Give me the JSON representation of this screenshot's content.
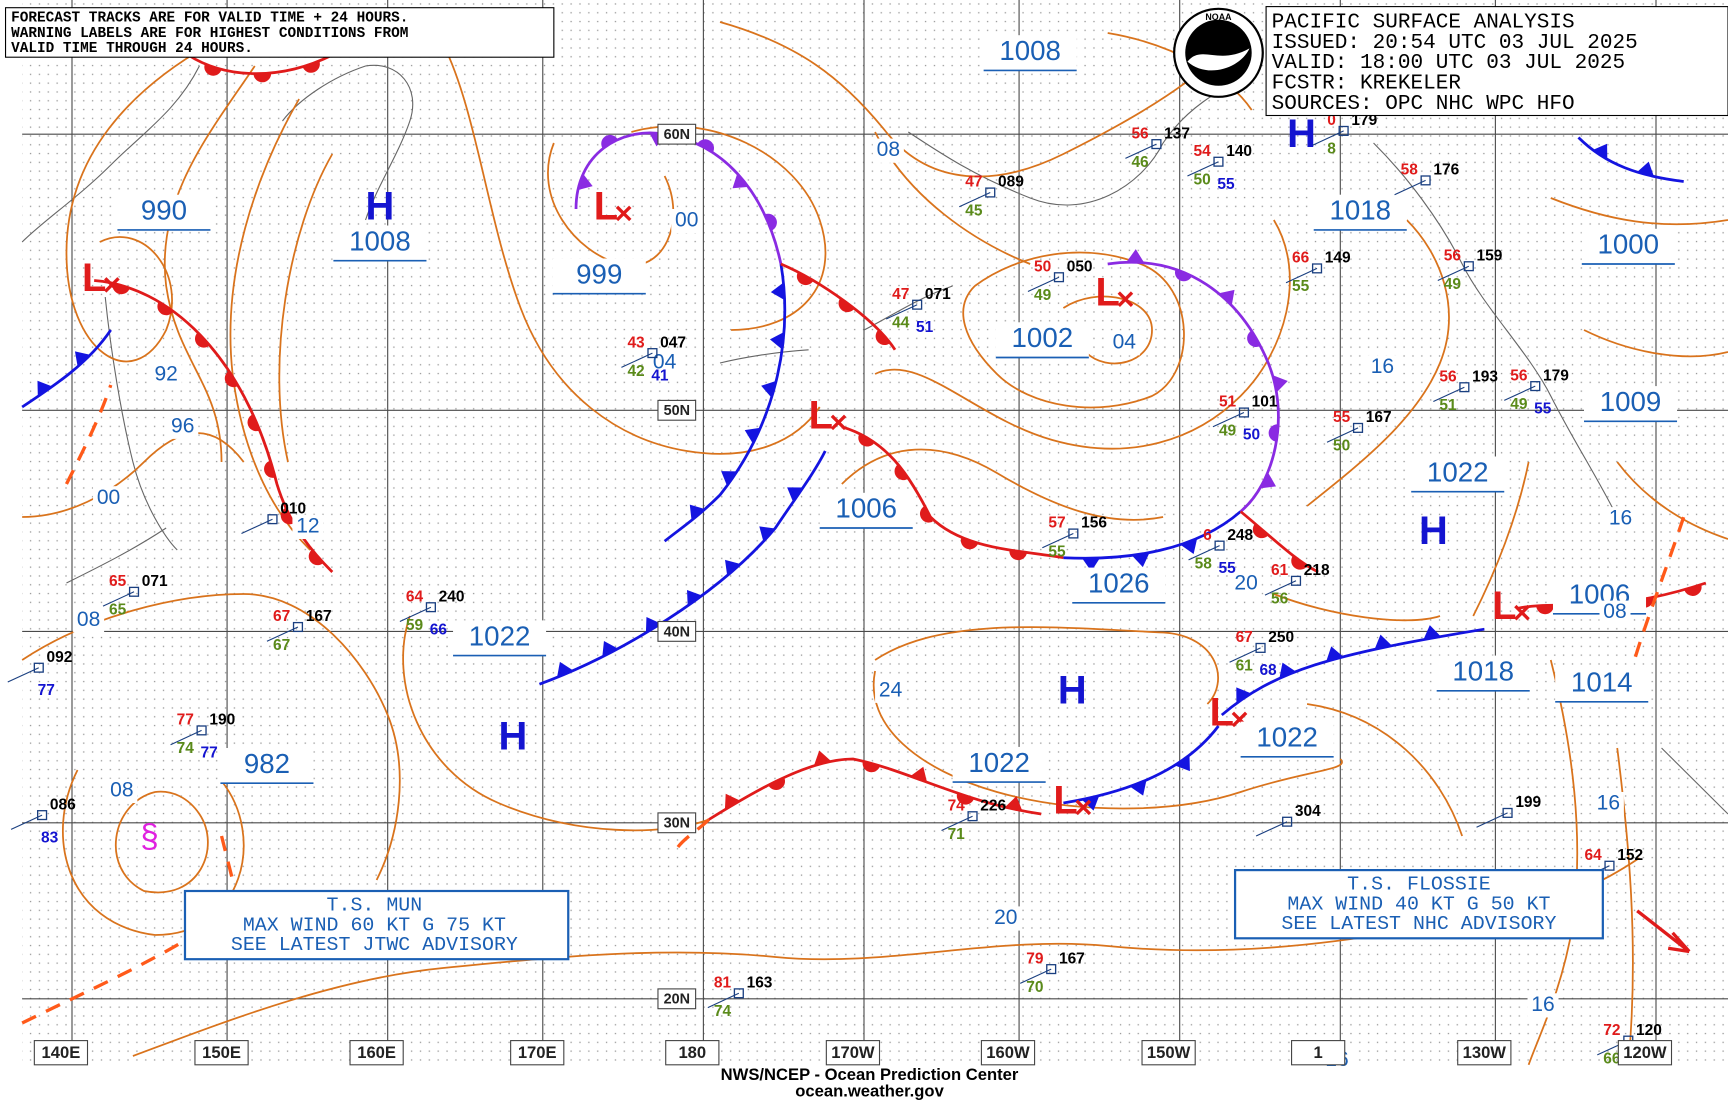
{
  "notice": [
    "FORECAST TRACKS ARE FOR VALID TIME + 24 HOURS.",
    "WARNING LABELS ARE FOR HIGHEST CONDITIONS FROM",
    "VALID TIME THROUGH 24 HOURS."
  ],
  "info": [
    "PACIFIC SURFACE ANALYSIS",
    "ISSUED: 20:54 UTC 03 JUL 2025",
    "VALID:  18:00 UTC 03 JUL 2025",
    "FCSTR:  KREKELER",
    "SOURCES:  OPC NHC WPC HFO"
  ],
  "logo": "NOAA",
  "lon_labels": [
    "140E",
    "150E",
    "160E",
    "170E",
    "180",
    "170W",
    "160W",
    "150W",
    "1",
    "130W",
    "120W"
  ],
  "lat_labels": [
    "60N",
    "50N",
    "40N",
    "30N",
    "20N"
  ],
  "boxed_pressures": [
    "1008",
    "990",
    "1008",
    "999",
    "1002",
    "1018",
    "1000",
    "1009",
    "1022",
    "1006",
    "1026",
    "1022",
    "982",
    "1022",
    "1022",
    "1018",
    "1014",
    "1006"
  ],
  "isobar_labels": [
    "08",
    "00",
    "04",
    "92",
    "96",
    "00",
    "12",
    "08",
    "08",
    "04",
    "16",
    "16",
    "20",
    "24",
    "20",
    "16",
    "16",
    "16",
    "08"
  ],
  "centers": [
    "H",
    "L",
    "L",
    "L",
    "H",
    "L",
    "H",
    "H",
    "H",
    "L",
    "L",
    "L"
  ],
  "stations": [
    {
      "p": "089",
      "t": "47",
      "d": "45"
    },
    {
      "p": "050",
      "t": "50",
      "d": "49"
    },
    {
      "p": "071",
      "t": "47",
      "d": "44",
      "w": "51"
    },
    {
      "p": "047",
      "t": "43",
      "d": "42",
      "w": "41"
    },
    {
      "p": "137",
      "t": "56",
      "d": "46"
    },
    {
      "p": "140",
      "t": "54",
      "d": "50",
      "w": "55"
    },
    {
      "p": "179",
      "t": "0",
      "d": "8"
    },
    {
      "p": "176",
      "t": "58"
    },
    {
      "p": "149",
      "t": "66",
      "d": "55"
    },
    {
      "p": "159",
      "t": "56",
      "d": "49"
    },
    {
      "p": "193",
      "t": "56",
      "d": "51"
    },
    {
      "p": "179",
      "t": "56",
      "d": "49",
      "w": "55"
    },
    {
      "p": "101",
      "t": "51",
      "d": "49",
      "w": "50"
    },
    {
      "p": "167",
      "t": "55",
      "d": "50"
    },
    {
      "p": "156",
      "t": "57",
      "d": "55"
    },
    {
      "p": "248",
      "t": "6",
      "d": "58",
      "w": "55"
    },
    {
      "p": "218",
      "t": "61",
      "d": "56"
    },
    {
      "p": "240",
      "t": "64",
      "d": "59",
      "w": "66"
    },
    {
      "p": "167",
      "t": "67",
      "d": "67"
    },
    {
      "p": "071",
      "t": "65",
      "d": "65"
    },
    {
      "p": "092",
      "w": "77"
    },
    {
      "p": "190",
      "t": "77",
      "d": "74",
      "w": "77"
    },
    {
      "p": "086",
      "w": "83"
    },
    {
      "p": "250",
      "t": "67",
      "d": "61",
      "w": "68"
    },
    {
      "p": "304"
    },
    {
      "p": "226",
      "t": "74",
      "d": "71"
    },
    {
      "p": "163",
      "t": "81",
      "d": "74"
    },
    {
      "p": "167",
      "t": "79",
      "d": "70"
    },
    {
      "p": "199"
    },
    {
      "p": "152",
      "t": "64"
    },
    {
      "p": "120",
      "t": "72",
      "d": "66"
    },
    {
      "p": "010"
    }
  ],
  "advisories": [
    [
      "T.S. MUN",
      "MAX WIND 60 KT G 75 KT",
      "SEE LATEST JTWC ADVISORY"
    ],
    [
      "T.S. FLOSSIE",
      "MAX WIND 40 KT G 50 KT",
      "SEE LATEST NHC ADVISORY"
    ]
  ],
  "footer": [
    "NWS/NCEP - Ocean Prediction Center",
    "ocean.weather.gov"
  ]
}
